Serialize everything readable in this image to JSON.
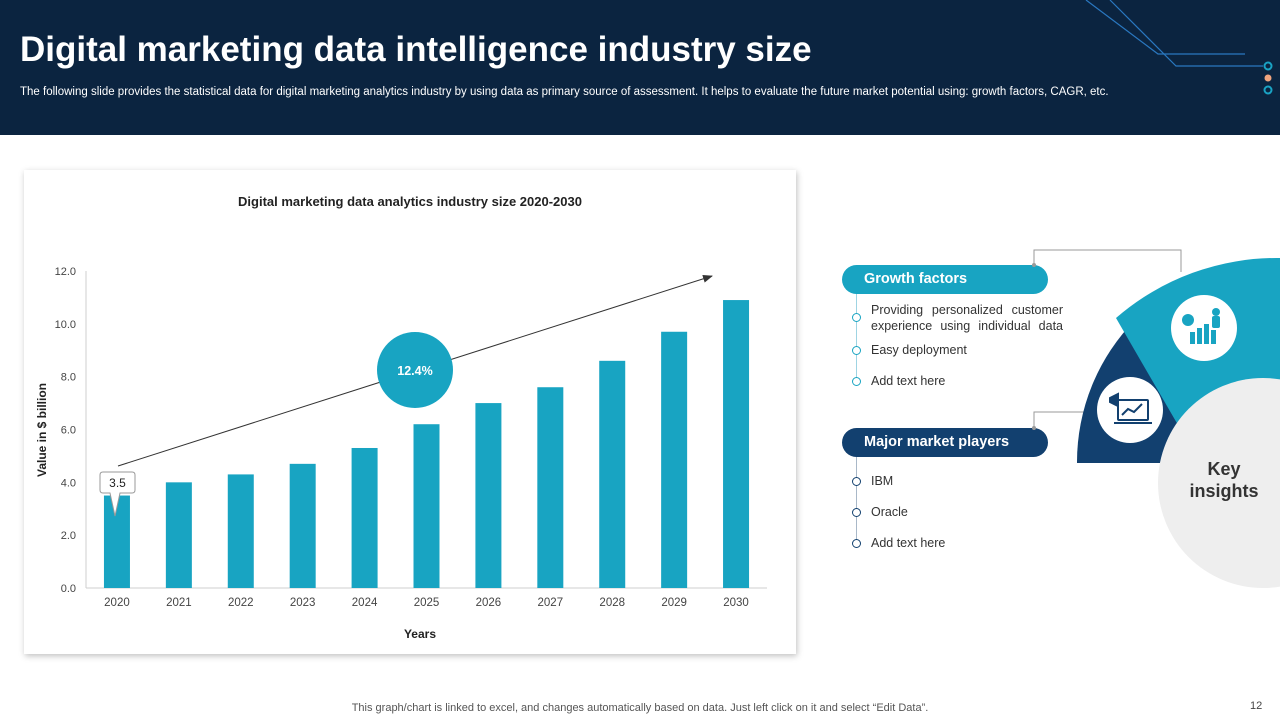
{
  "header": {
    "title": "Digital marketing data intelligence industry size",
    "subtitle": "The following slide provides the statistical data for digital marketing analytics industry by using data as primary source of assessment. It helps to evaluate the future market potential using: growth factors, CAGR, etc."
  },
  "chart_data": {
    "type": "bar",
    "title": "Digital marketing data analytics industry size 2020-2030",
    "xlabel": "Years",
    "ylabel": "Value in $ billion",
    "categories": [
      "2020",
      "2021",
      "2022",
      "2023",
      "2024",
      "2025",
      "2026",
      "2027",
      "2028",
      "2029",
      "2030"
    ],
    "values": [
      3.5,
      4.0,
      4.3,
      4.7,
      5.3,
      6.2,
      7.0,
      7.6,
      8.6,
      9.7,
      10.9
    ],
    "ylim": [
      0,
      12
    ],
    "yticks": [
      "0.0",
      "2.0",
      "4.0",
      "6.0",
      "8.0",
      "10.0",
      "12.0"
    ],
    "bar_color": "#18a4c2",
    "callout_label": "3.5",
    "cagr_label": "12.4%",
    "grid": false
  },
  "insights": {
    "label": "Key insights",
    "growth": {
      "title": "Growth factors",
      "items": [
        "Providing personalized customer experience using individual data",
        "Easy deployment",
        "Add text here"
      ]
    },
    "major": {
      "title": "Major market players",
      "items": [
        "IBM",
        "Oracle",
        "Add text here"
      ]
    },
    "colors": {
      "teal": "#18a4c2",
      "navy": "#12406f",
      "grey": "#eeeeee"
    },
    "icons": [
      "growth-chart-icon",
      "marketing-analytics-icon"
    ]
  },
  "footer": {
    "note": "This graph/chart is linked to excel, and changes automatically based on data. Just left click on it and select “Edit Data”.",
    "page": "12"
  }
}
